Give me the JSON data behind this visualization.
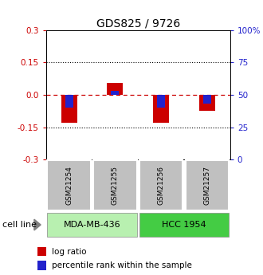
{
  "title": "GDS825 / 9726",
  "samples": [
    "GSM21254",
    "GSM21255",
    "GSM21256",
    "GSM21257"
  ],
  "log_ratios": [
    -0.13,
    0.055,
    -0.13,
    -0.075
  ],
  "percentile_ranks_mapped": [
    -0.06,
    0.02,
    -0.06,
    -0.04
  ],
  "bar_width": 0.35,
  "ylim": [
    -0.3,
    0.3
  ],
  "yticks_left": [
    -0.3,
    -0.15,
    0.0,
    0.15,
    0.3
  ],
  "yticks_right": [
    0,
    25,
    50,
    75,
    100
  ],
  "ytick_right_labels": [
    "0",
    "25",
    "50",
    "75",
    "100%"
  ],
  "hline_dotted": [
    -0.15,
    0.15
  ],
  "hline_dashed": 0.0,
  "red_color": "#cc0000",
  "blue_color": "#2222cc",
  "legend_red_label": "log ratio",
  "legend_blue_label": "percentile rank within the sample",
  "cell_line_label": "cell line",
  "sample_box_color": "#c0c0c0",
  "cl1_name": "MDA-MB-436",
  "cl1_color": "#b8f0b0",
  "cl2_name": "HCC 1954",
  "cl2_color": "#44cc44",
  "title_fontsize": 10,
  "tick_fontsize": 7.5,
  "label_fontsize": 8,
  "legend_fontsize": 7.5,
  "sample_fontsize": 6.5
}
